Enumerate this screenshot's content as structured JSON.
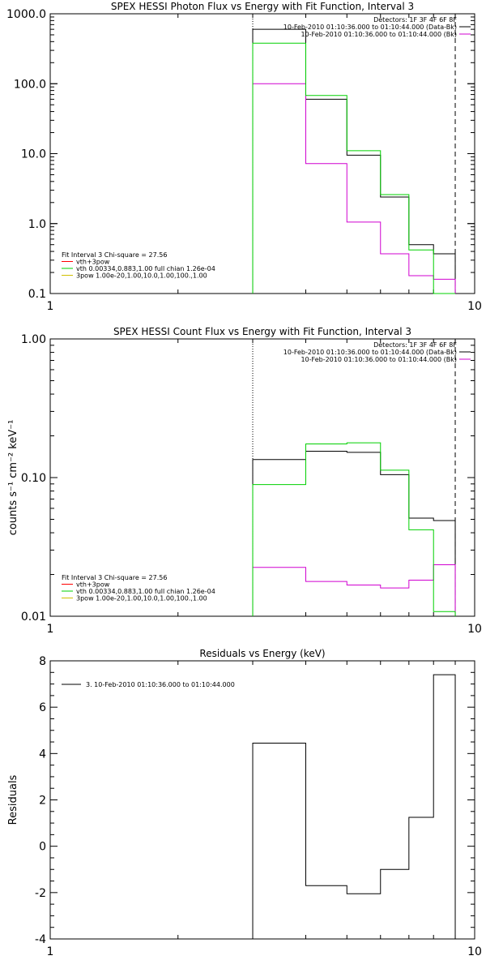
{
  "chart_data": [
    {
      "type": "line",
      "step": true,
      "title": "SPEX HESSI Photon Flux vs Energy with Fit Function, Interval 3",
      "xlabel": "",
      "ylabel": "",
      "xscale": "log",
      "yscale": "log",
      "xlim": [
        1,
        10
      ],
      "ylim": [
        0.1,
        1000
      ],
      "xticks": [
        {
          "v": 1,
          "label": "1"
        },
        {
          "v": 10,
          "label": "10"
        }
      ],
      "yticks": [
        {
          "v": 1000,
          "label": "1000.0"
        },
        {
          "v": 100,
          "label": "100.0"
        },
        {
          "v": 10,
          "label": "10.0"
        },
        {
          "v": 1,
          "label": "1.0"
        },
        {
          "v": 0.1,
          "label": "0.1"
        }
      ],
      "vlines": [
        {
          "x": 3.0,
          "style": "dotted"
        },
        {
          "x": 9.0,
          "style": "dashed"
        }
      ],
      "legend_top": [
        {
          "text": "Detectors: 1F 3F 4F 6F 8F",
          "color": ""
        },
        {
          "text": "10-Feb-2010 01:10:36.000 to 01:10:44.000 (Data-Bk)",
          "color": "#000000"
        },
        {
          "text": "10-Feb-2010 01:10:36.000 to 01:10:44.000 (Bk)",
          "color": "#d000d0"
        }
      ],
      "legend_bottom": [
        {
          "text": "Fit Interval 3   Chi-square = 27.56",
          "color": ""
        },
        {
          "text": "vth+3pow",
          "color": "#ff0000"
        },
        {
          "text": "vth 0.00334,0.883,1.00  full chian 1.26e-04",
          "color": "#00d000"
        },
        {
          "text": "3pow 1.00e-20,1.00,10.0,1.00,100.,1.00",
          "color": "#d0c000"
        }
      ],
      "edges": [
        3.0,
        4.0,
        5.0,
        6.0,
        7.0,
        8.0,
        9.0
      ],
      "series": [
        {
          "key": "data_bk",
          "color": "#000000",
          "values": [
            600,
            60,
            9.5,
            2.4,
            0.5,
            0.37
          ]
        },
        {
          "key": "bk",
          "color": "#d000d0",
          "values": [
            100,
            7.2,
            1.05,
            0.37,
            0.18,
            0.16
          ]
        },
        {
          "key": "fit",
          "color": "#00d000",
          "values": [
            380,
            68,
            11,
            2.6,
            0.42,
            0.1
          ]
        }
      ]
    },
    {
      "type": "line",
      "step": true,
      "title": "SPEX HESSI Count Flux vs Energy with Fit Function, Interval 3",
      "xlabel": "",
      "ylabel": "counts s⁻¹ cm⁻² keV⁻¹",
      "xscale": "log",
      "yscale": "log",
      "xlim": [
        1,
        10
      ],
      "ylim": [
        0.01,
        1
      ],
      "xticks": [
        {
          "v": 1,
          "label": "1"
        },
        {
          "v": 10,
          "label": "10"
        }
      ],
      "yticks": [
        {
          "v": 1,
          "label": "1.00"
        },
        {
          "v": 0.1,
          "label": "0.10"
        },
        {
          "v": 0.01,
          "label": "0.01"
        }
      ],
      "vlines": [
        {
          "x": 3.0,
          "style": "dotted"
        },
        {
          "x": 9.0,
          "style": "dashed"
        }
      ],
      "legend_top": [
        {
          "text": "Detectors: 1F 3F 4F 6F 8F",
          "color": ""
        },
        {
          "text": "10-Feb-2010 01:10:36.000 to 01:10:44.000 (Data-Bk)",
          "color": "#000000"
        },
        {
          "text": "10-Feb-2010 01:10:36.000 to 01:10:44.000 (Bk)",
          "color": "#d000d0"
        }
      ],
      "legend_bottom": [
        {
          "text": "Fit Interval 3   Chi-square = 27.56",
          "color": ""
        },
        {
          "text": "vth+3pow",
          "color": "#ff0000"
        },
        {
          "text": "vth 0.00334,0.883,1.00  full chian 1.26e-04",
          "color": "#00d000"
        },
        {
          "text": "3pow 1.00e-20,1.00,10.0,1.00,100.,1.00",
          "color": "#d0c000"
        }
      ],
      "edges": [
        3.0,
        4.0,
        5.0,
        6.0,
        7.0,
        8.0,
        9.0
      ],
      "series": [
        {
          "key": "data_bk",
          "color": "#000000",
          "values": [
            0.135,
            0.155,
            0.152,
            0.105,
            0.051,
            0.049
          ]
        },
        {
          "key": "bk",
          "color": "#d000d0",
          "values": [
            0.0225,
            0.0178,
            0.0168,
            0.016,
            0.0182,
            0.0235
          ]
        },
        {
          "key": "fit",
          "color": "#00d000",
          "values": [
            0.089,
            0.175,
            0.178,
            0.113,
            0.042,
            0.0108
          ]
        }
      ]
    },
    {
      "type": "line",
      "step": true,
      "title": "Residuals vs Energy (keV)",
      "xlabel": "",
      "ylabel": "Residuals",
      "xscale": "log",
      "yscale": "linear",
      "xlim": [
        1,
        10
      ],
      "ylim": [
        -4,
        8
      ],
      "xticks": [
        {
          "v": 1,
          "label": "1"
        },
        {
          "v": 10,
          "label": "10"
        }
      ],
      "yticks": [
        {
          "v": 8,
          "label": "8"
        },
        {
          "v": 6,
          "label": "6"
        },
        {
          "v": 4,
          "label": "4"
        },
        {
          "v": 2,
          "label": "2"
        },
        {
          "v": 0,
          "label": "0"
        },
        {
          "v": -2,
          "label": "-2"
        },
        {
          "v": -4,
          "label": "-4"
        }
      ],
      "vlines": [],
      "legend_top": [],
      "legend_bottom": [],
      "legend_left": [
        {
          "text": "3. 10-Feb-2010 01:10:36.000 to 01:10:44.000",
          "color": "#000000"
        }
      ],
      "edges": [
        3.0,
        4.0,
        5.0,
        6.0,
        7.0,
        8.0,
        9.0
      ],
      "series": [
        {
          "key": "residuals",
          "color": "#000000",
          "values": [
            4.45,
            -1.7,
            -2.05,
            -1.0,
            1.25,
            7.4
          ]
        }
      ]
    }
  ]
}
